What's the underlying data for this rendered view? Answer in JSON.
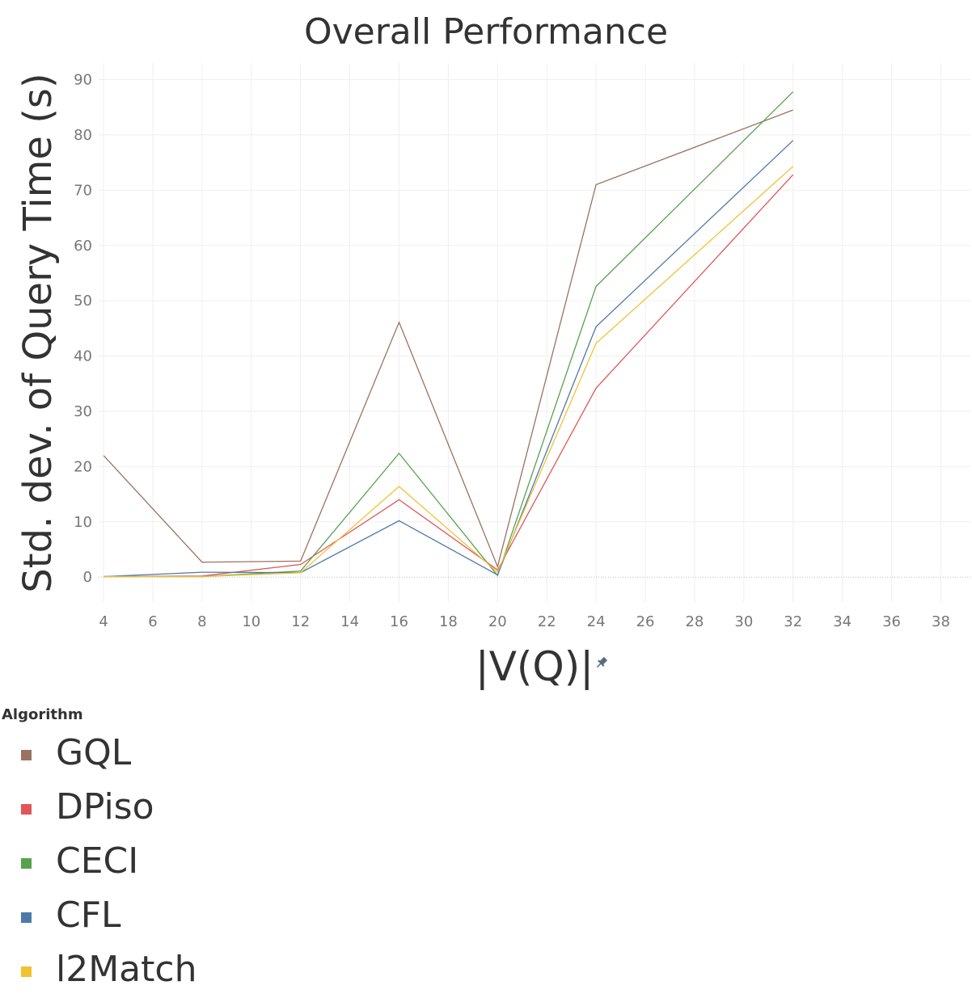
{
  "chart_data": {
    "type": "line",
    "title": "Overall Performance",
    "xlabel": "|V(Q)|",
    "ylabel": "Std. dev. of Query Time (s)",
    "xlim": [
      3.8,
      39.2
    ],
    "ylim": [
      -4.5,
      93
    ],
    "x_ticks": [
      4,
      6,
      8,
      10,
      12,
      14,
      16,
      18,
      20,
      22,
      24,
      26,
      28,
      30,
      32,
      34,
      36,
      38
    ],
    "y_ticks": [
      0,
      10,
      20,
      30,
      40,
      50,
      60,
      70,
      80,
      90
    ],
    "grid": true,
    "legend_title": "Algorithm",
    "legend_position": "bottom-left",
    "x": [
      4,
      8,
      12,
      16,
      20,
      24,
      32
    ],
    "series": [
      {
        "name": "GQL",
        "color": "#9b7261",
        "values": [
          22,
          2.7,
          2.9,
          46.1,
          1.9,
          71,
          84.5
        ]
      },
      {
        "name": "DPiso",
        "color": "#e05759",
        "values": [
          0.1,
          0.2,
          2.3,
          14,
          1.3,
          34.2,
          72.8
        ]
      },
      {
        "name": "CECI",
        "color": "#59a14f",
        "values": [
          0.1,
          0.1,
          1.1,
          22.4,
          0.3,
          52.6,
          87.8
        ]
      },
      {
        "name": "CFL",
        "color": "#4e79a7",
        "values": [
          0.1,
          0.9,
          0.8,
          10.2,
          0.4,
          45.3,
          79
        ]
      },
      {
        "name": "l2Match",
        "color": "#f1c232",
        "values": [
          0.1,
          0.1,
          0.8,
          16.4,
          0.9,
          42.3,
          74.3
        ]
      }
    ]
  }
}
